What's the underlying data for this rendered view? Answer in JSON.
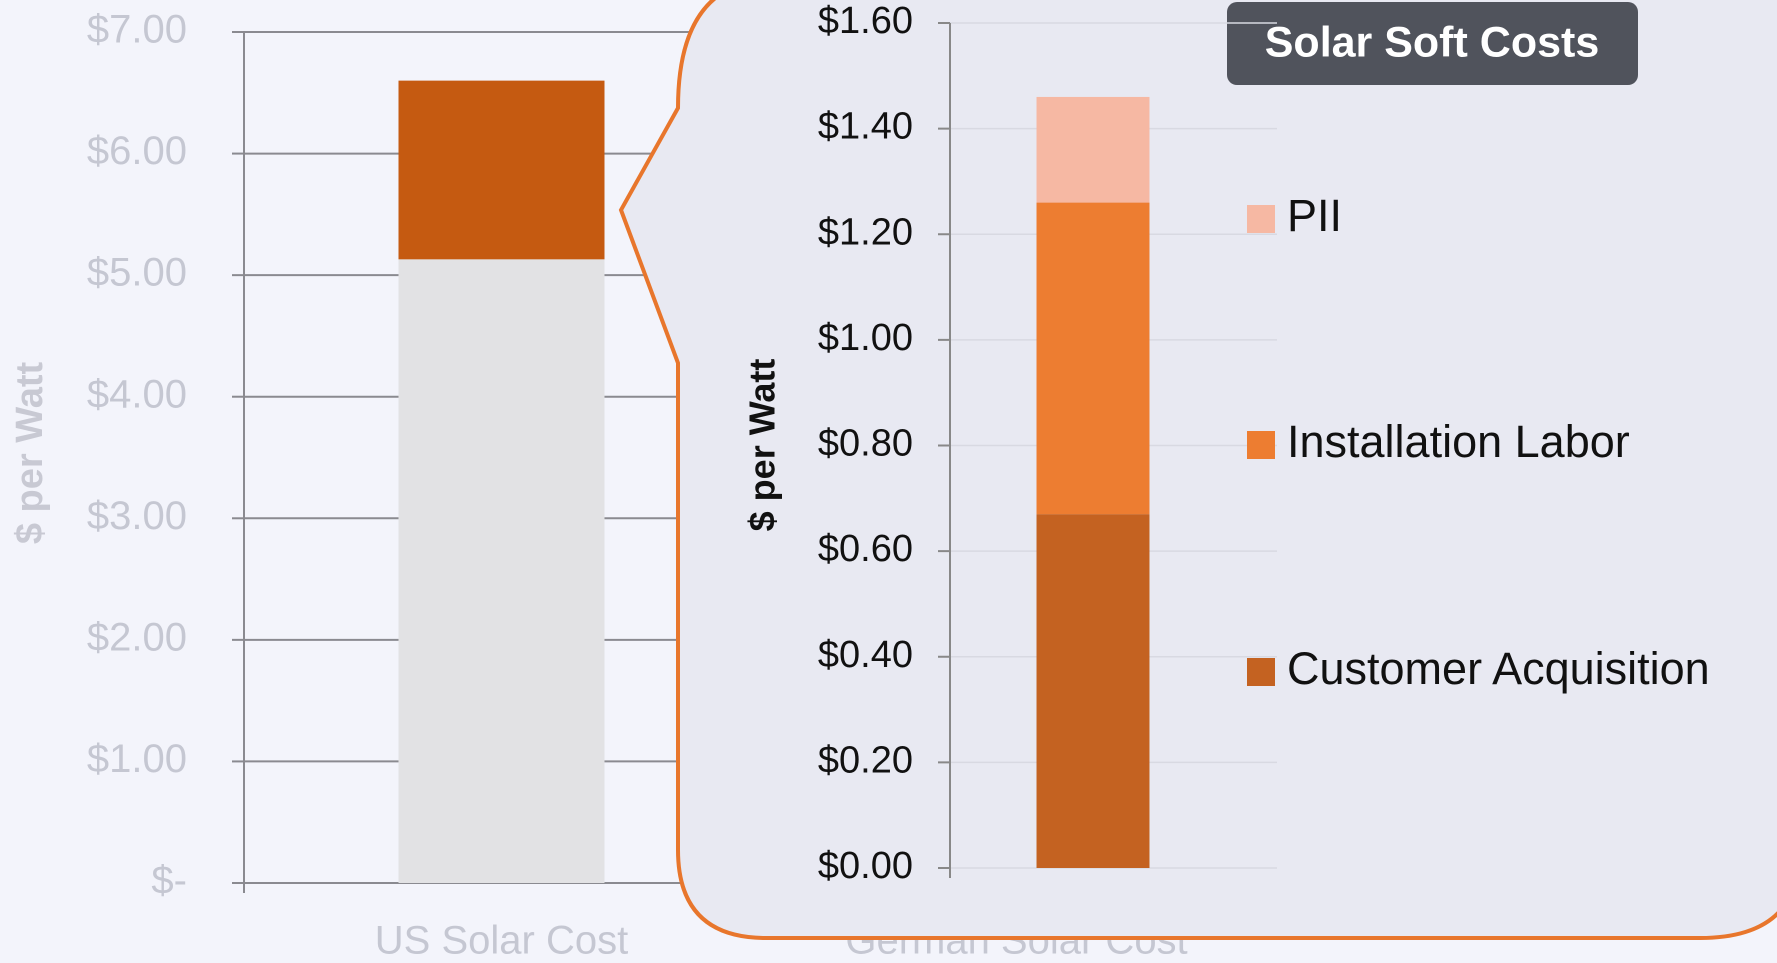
{
  "chart_data": [
    {
      "type": "bar",
      "stacked": true,
      "y_label": "$ per Watt",
      "categories": [
        "US Solar Cost",
        "German Solar Cost"
      ],
      "series": [
        {
          "color": "#e2e2e4",
          "values": [
            5.13,
            null
          ]
        },
        {
          "color": "#c55a11",
          "values": [
            1.47,
            null
          ]
        }
      ],
      "ylim": [
        0,
        7
      ],
      "yticks": [
        {
          "value": 0,
          "label": "$-"
        },
        {
          "value": 1,
          "label": "$1.00"
        },
        {
          "value": 2,
          "label": "$2.00"
        },
        {
          "value": 3,
          "label": "$3.00"
        },
        {
          "value": 4,
          "label": "$4.00"
        },
        {
          "value": 5,
          "label": "$5.00"
        },
        {
          "value": 6,
          "label": "$6.00"
        },
        {
          "value": 7,
          "label": "$7.00"
        }
      ],
      "grid": true
    },
    {
      "type": "bar",
      "stacked": true,
      "title": "Solar Soft Costs",
      "y_label": "$ per Watt",
      "categories": [
        null
      ],
      "series": [
        {
          "name": "Customer Acquisition",
          "color": "#c46221",
          "values": [
            0.67
          ]
        },
        {
          "name": "Installation Labor",
          "color": "#ed7d31",
          "values": [
            0.59
          ]
        },
        {
          "name": "PII",
          "color": "#f6b8a3",
          "values": [
            0.2
          ]
        }
      ],
      "ylim": [
        0,
        1.6
      ],
      "yticks": [
        {
          "value": 0,
          "label": "$0.00"
        },
        {
          "value": 0.2,
          "label": "$0.20"
        },
        {
          "value": 0.4,
          "label": "$0.40"
        },
        {
          "value": 0.6,
          "label": "$0.60"
        },
        {
          "value": 0.8,
          "label": "$0.80"
        },
        {
          "value": 1,
          "label": "$1.00"
        },
        {
          "value": 1.2,
          "label": "$1.20"
        },
        {
          "value": 1.4,
          "label": "$1.40"
        },
        {
          "value": 1.6,
          "label": "$1.60"
        }
      ],
      "grid": true,
      "legend": "right"
    }
  ]
}
